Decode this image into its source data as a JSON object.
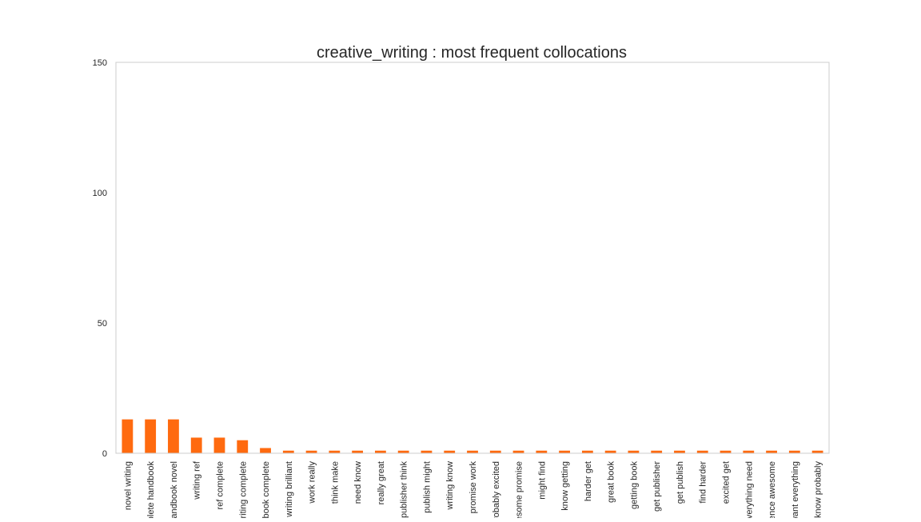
{
  "chart_data": {
    "type": "bar",
    "title": "creative_writing : most frequent collocations",
    "xlabel": "",
    "ylabel": "",
    "ylim": [
      0,
      150
    ],
    "yticks": [
      0,
      50,
      100,
      150
    ],
    "grid": false,
    "legend": "none",
    "bar_color": "#ff6a0f",
    "categories": [
      "novel writing",
      "complete handbook",
      "handbook novel",
      "writing ref",
      "ref complete",
      "writing complete",
      "book complete",
      "writing brilliant",
      "work really",
      "think make",
      "need know",
      "really great",
      "publisher think",
      "publish might",
      "writing know",
      "promise work",
      "probably excited",
      "awesome promise",
      "might find",
      "know getting",
      "harder get",
      "great book",
      "getting book",
      "get publisher",
      "get publish",
      "find harder",
      "excited get",
      "everything need",
      "experience awesome",
      "want everything",
      "know probably"
    ],
    "values": [
      13,
      13,
      13,
      6,
      6,
      5,
      2,
      1,
      1,
      1,
      1,
      1,
      1,
      1,
      1,
      1,
      1,
      1,
      1,
      1,
      1,
      1,
      1,
      1,
      1,
      1,
      1,
      1,
      1,
      1,
      1
    ]
  }
}
